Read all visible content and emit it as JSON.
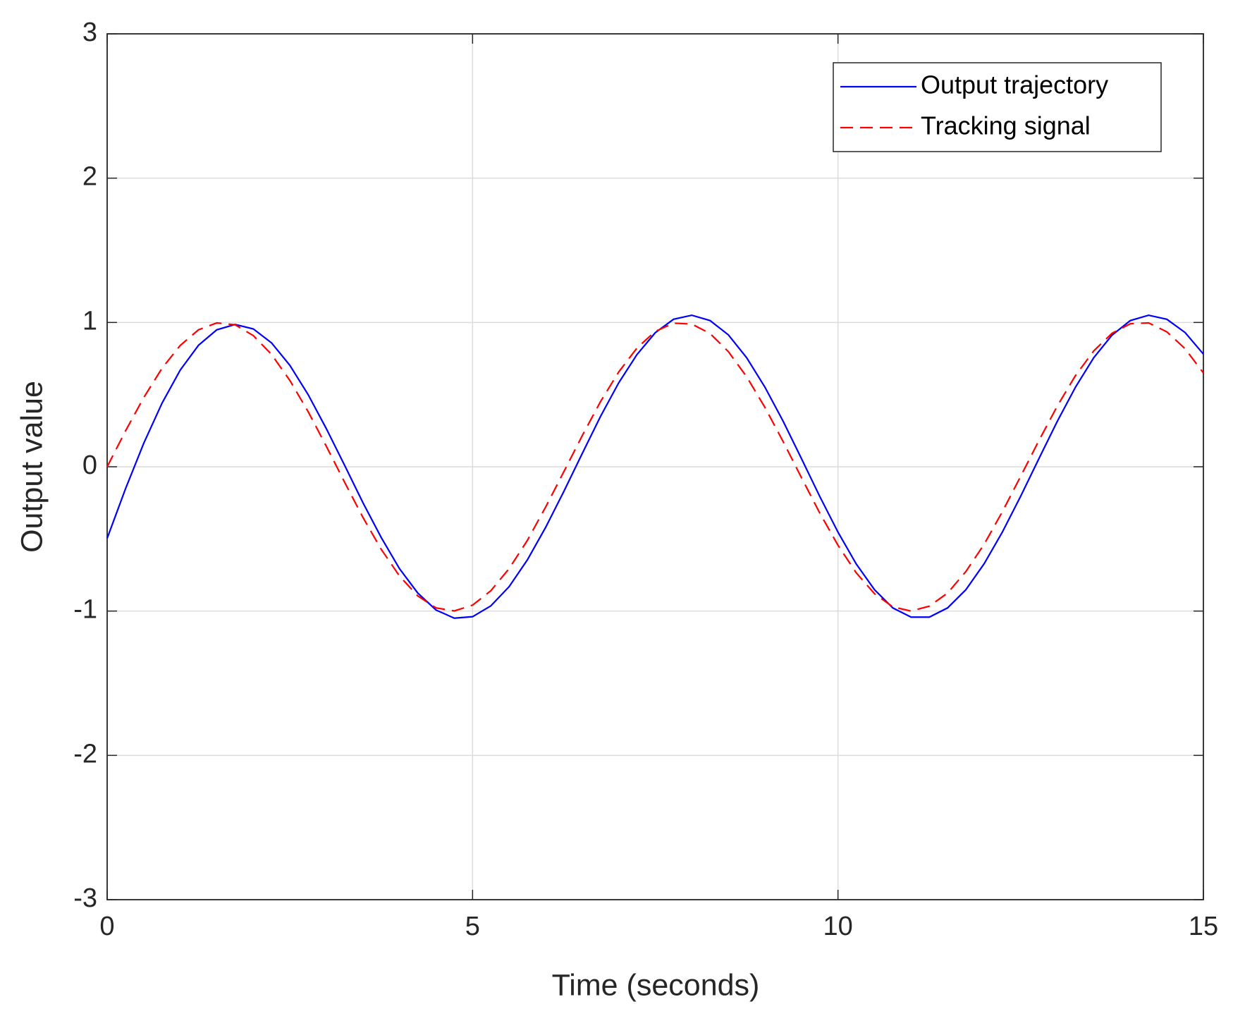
{
  "chart_data": {
    "type": "line",
    "xlabel": "Time (seconds)",
    "ylabel": "Output value",
    "x": [
      0,
      0.25,
      0.5,
      0.75,
      1,
      1.25,
      1.5,
      1.75,
      2,
      2.25,
      2.5,
      2.75,
      3,
      3.25,
      3.5,
      3.75,
      4,
      4.25,
      4.5,
      4.75,
      5,
      5.25,
      5.5,
      5.75,
      6,
      6.25,
      6.5,
      6.75,
      7,
      7.25,
      7.5,
      7.75,
      8,
      8.25,
      8.5,
      8.75,
      9,
      9.25,
      9.5,
      9.75,
      10,
      10.25,
      10.5,
      10.75,
      11,
      11.25,
      11.5,
      11.75,
      12,
      12.25,
      12.5,
      12.75,
      13,
      13.25,
      13.5,
      13.75,
      14,
      14.25,
      14.5,
      14.75,
      15
    ],
    "series": [
      {
        "name": "Output trajectory",
        "color": "#0000ff",
        "dash": "solid",
        "values": [
          -0.496,
          -0.154,
          0.162,
          0.44,
          0.67,
          0.842,
          0.949,
          0.986,
          0.955,
          0.858,
          0.703,
          0.5,
          0.263,
          0.009,
          -0.249,
          -0.49,
          -0.706,
          -0.875,
          -0.993,
          -1.049,
          -1.039,
          -0.964,
          -0.831,
          -0.645,
          -0.42,
          -0.17,
          0.091,
          0.348,
          0.582,
          0.778,
          0.929,
          1.022,
          1.05,
          1.013,
          0.914,
          0.756,
          0.552,
          0.315,
          0.057,
          -0.205,
          -0.453,
          -0.674,
          -0.852,
          -0.978,
          -1.042,
          -1.042,
          -0.978,
          -0.852,
          -0.672,
          -0.452,
          -0.204,
          0.057,
          0.314,
          0.552,
          0.756,
          0.912,
          1.013,
          1.05,
          1.022,
          0.93,
          0.781
        ]
      },
      {
        "name": "Tracking signal",
        "color": "#ff0000",
        "dash": "dashed",
        "values": [
          0,
          0.247,
          0.479,
          0.682,
          0.841,
          0.949,
          0.997,
          0.984,
          0.909,
          0.778,
          0.598,
          0.382,
          0.141,
          -0.108,
          -0.351,
          -0.572,
          -0.757,
          -0.895,
          -0.978,
          -0.999,
          -0.959,
          -0.859,
          -0.706,
          -0.51,
          -0.279,
          -0.033,
          0.215,
          0.451,
          0.657,
          0.823,
          0.938,
          0.995,
          0.989,
          0.923,
          0.798,
          0.624,
          0.412,
          0.174,
          -0.075,
          -0.32,
          -0.544,
          -0.735,
          -0.88,
          -0.971,
          -1,
          -0.966,
          -0.875,
          -0.726,
          -0.537,
          -0.311,
          -0.066,
          0.182,
          0.42,
          0.632,
          0.803,
          0.925,
          0.991,
          0.997,
          0.935,
          0.818,
          0.65
        ]
      }
    ],
    "xlim": [
      0,
      15
    ],
    "xticks": [
      0,
      5,
      10,
      15
    ],
    "ylim": [
      -3,
      3
    ],
    "yticks": [
      -3,
      -2,
      -1,
      0,
      1,
      2,
      3
    ],
    "grid": true,
    "legend": "northeast"
  }
}
